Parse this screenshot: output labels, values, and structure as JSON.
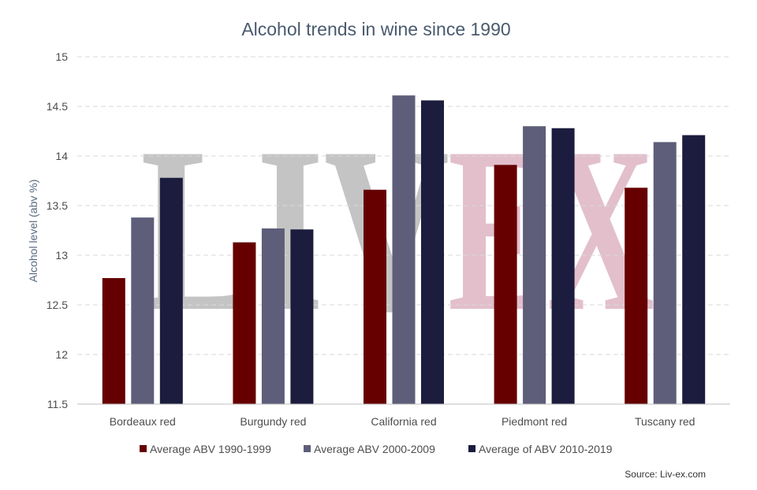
{
  "chart_data": {
    "type": "bar",
    "title": "Alcohol trends in wine since 1990",
    "ylabel": "Alcohol level (abv %)",
    "xlabel": "",
    "ylim": [
      11.5,
      15
    ],
    "yticks": [
      "11.5",
      "12",
      "12.5",
      "13",
      "13.5",
      "14",
      "14.5",
      "15"
    ],
    "grid": true,
    "legend_position": "bottom",
    "categories": [
      "Bordeaux red",
      "Burgundy red",
      "California red",
      "Piedmont red",
      "Tuscany red"
    ],
    "series": [
      {
        "name": "Average ABV 1990-1999",
        "color": "#660000",
        "values": [
          12.77,
          13.13,
          13.66,
          13.91,
          13.68
        ]
      },
      {
        "name": "Average ABV 2000-2009",
        "color": "#5e5e7a",
        "values": [
          13.38,
          13.27,
          14.61,
          14.3,
          14.14
        ]
      },
      {
        "name": "Average of ABV 2010-2019",
        "color": "#1c1c3e",
        "values": [
          13.78,
          13.26,
          14.56,
          14.28,
          14.21
        ]
      }
    ],
    "source": "Source: Liv-ex.com",
    "watermark": "LIVEX"
  }
}
